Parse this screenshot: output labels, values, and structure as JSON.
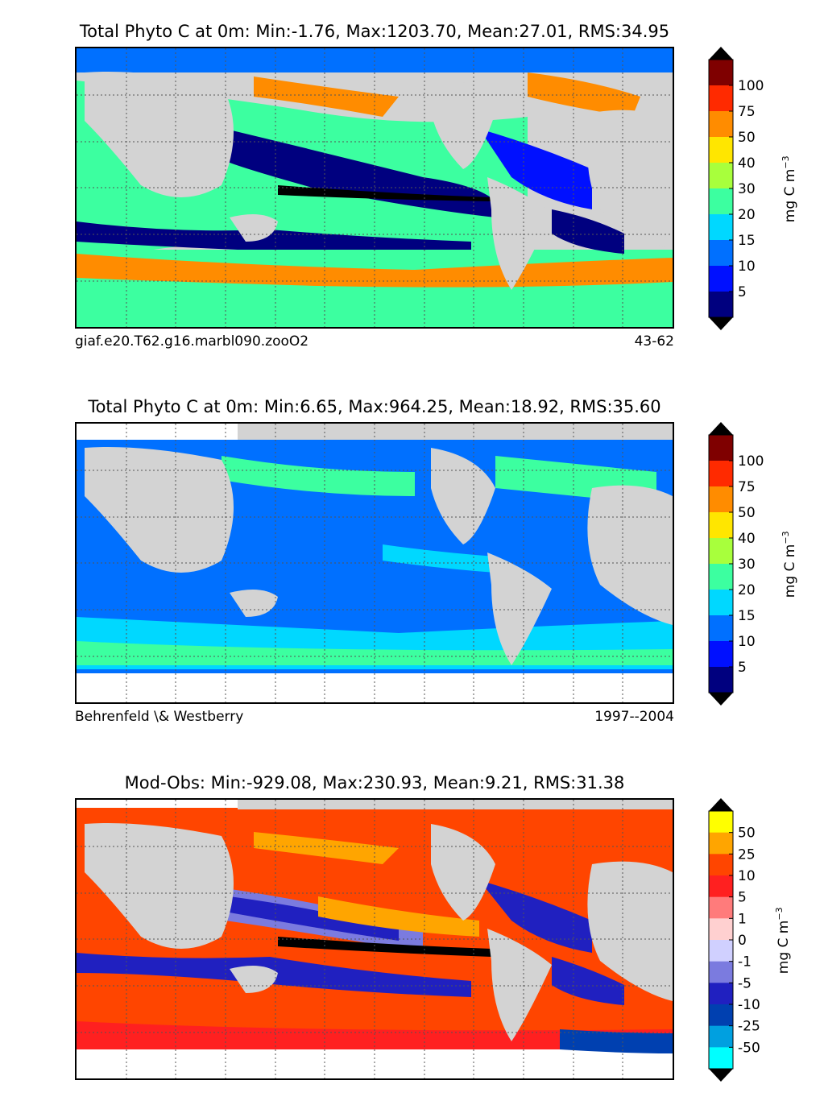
{
  "chart_data": [
    {
      "type": "heatmap",
      "title": "Total Phyto C at 0m: Min:-1.76, Max:1203.70, Mean:27.01, RMS:34.95",
      "left_label": "giaf.e20.T62.g16.marbl090.zooO2",
      "right_label": "43-62",
      "colorbar": {
        "label": "mg C m",
        "label_sup": "−3",
        "ticks": [
          "100",
          "75",
          "50",
          "40",
          "30",
          "20",
          "15",
          "10",
          "5"
        ],
        "colors": [
          "#7f0000",
          "#ff2a00",
          "#ff8c00",
          "#ffe600",
          "#a8ff3c",
          "#3cffa0",
          "#00d8ff",
          "#0070ff",
          "#0010ff",
          "#00007f"
        ],
        "extend": "both"
      },
      "stats": {
        "min": -1.76,
        "max": 1203.7,
        "mean": 27.01,
        "rms": 34.95
      }
    },
    {
      "type": "heatmap",
      "title": "Total Phyto C at 0m: Min:6.65, Max:964.25, Mean:18.92, RMS:35.60",
      "left_label": "Behrenfeld \\& Westberry",
      "right_label": "1997--2004",
      "colorbar": {
        "label": "mg C m",
        "label_sup": "−3",
        "ticks": [
          "100",
          "75",
          "50",
          "40",
          "30",
          "20",
          "15",
          "10",
          "5"
        ],
        "colors": [
          "#7f0000",
          "#ff2a00",
          "#ff8c00",
          "#ffe600",
          "#a8ff3c",
          "#3cffa0",
          "#00d8ff",
          "#0070ff",
          "#0010ff",
          "#00007f"
        ],
        "extend": "both"
      },
      "stats": {
        "min": 6.65,
        "max": 964.25,
        "mean": 18.92,
        "rms": 35.6
      }
    },
    {
      "type": "heatmap",
      "title": "Mod-Obs: Min:-929.08, Max:230.93, Mean:9.21, RMS:31.38",
      "left_label": "",
      "right_label": "",
      "colorbar": {
        "label": "mg C m",
        "label_sup": "−3",
        "ticks": [
          "50",
          "25",
          "10",
          "5",
          "1",
          "0",
          "-1",
          "-5",
          "-10",
          "-25",
          "-50"
        ],
        "colors": [
          "#ffff00",
          "#ffa500",
          "#ff4500",
          "#ff2020",
          "#ff7b7b",
          "#ffd0d0",
          "#d0d0ff",
          "#7b7bdf",
          "#2020c0",
          "#0040b0",
          "#00a0e0",
          "#00ffff"
        ],
        "extend": "both"
      },
      "stats": {
        "min": -929.08,
        "max": 230.93,
        "mean": 9.21,
        "rms": 31.38
      }
    }
  ]
}
